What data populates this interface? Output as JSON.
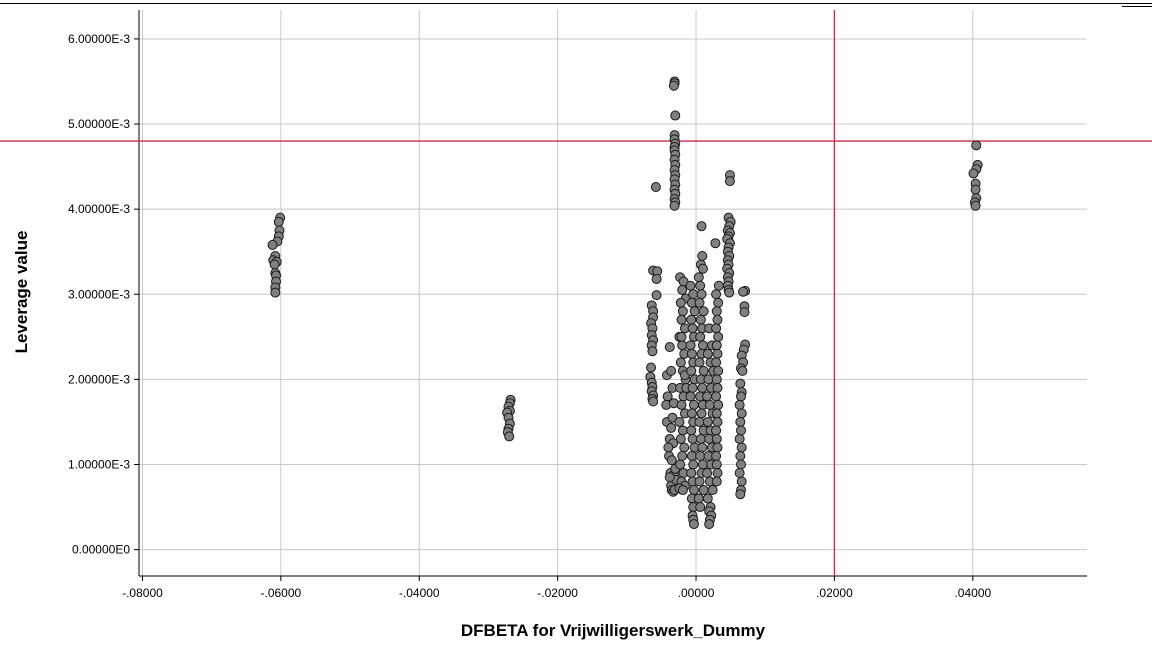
{
  "chart_data": {
    "type": "scatter",
    "title": "",
    "xlabel": "DFBETA for Vrijwilligerswerk_Dummy",
    "ylabel": "Leverage value",
    "xlim": [
      -0.0805,
      0.0565
    ],
    "ylim": [
      -0.00031,
      0.00634
    ],
    "x_ticks": [
      -0.08,
      -0.06,
      -0.04,
      -0.02,
      0.0,
      0.02,
      0.04
    ],
    "x_tick_labels": [
      "-.08000",
      "-.06000",
      "-.04000",
      "-.02000",
      ".00000",
      ".02000",
      ".04000"
    ],
    "y_ticks": [
      0.0,
      0.001,
      0.002,
      0.003,
      0.004,
      0.005,
      0.006
    ],
    "y_tick_labels": [
      "0.00000E0",
      "1.00000E-3",
      "2.00000E-3",
      "3.00000E-3",
      "4.00000E-3",
      "5.00000E-3",
      "6.00000E-3"
    ],
    "grid": true,
    "reference_lines": {
      "x": 0.02,
      "y": 0.0048,
      "color": "#d0284a"
    },
    "marker": {
      "fill": "#808080",
      "stroke": "#1a1a1a"
    },
    "series": [
      {
        "points": [
          [
            -0.0601,
            0.0039
          ],
          [
            -0.0603,
            0.00385
          ],
          [
            -0.0602,
            0.00375
          ],
          [
            -0.0603,
            0.00368
          ],
          [
            -0.0605,
            0.00362
          ],
          [
            -0.0612,
            0.00358
          ],
          [
            -0.0608,
            0.00345
          ],
          [
            -0.0611,
            0.0034
          ],
          [
            -0.0606,
            0.00338
          ],
          [
            -0.0609,
            0.00335
          ],
          [
            -0.0608,
            0.00325
          ],
          [
            -0.0607,
            0.00322
          ],
          [
            -0.0607,
            0.00315
          ],
          [
            -0.0608,
            0.00308
          ],
          [
            -0.0608,
            0.00302
          ],
          [
            -0.0268,
            0.00176
          ],
          [
            -0.0269,
            0.00172
          ],
          [
            -0.0271,
            0.00168
          ],
          [
            -0.0269,
            0.00163
          ],
          [
            -0.0273,
            0.00161
          ],
          [
            -0.0271,
            0.00155
          ],
          [
            -0.0269,
            0.00148
          ],
          [
            -0.0271,
            0.00142
          ],
          [
            -0.0272,
            0.00138
          ],
          [
            -0.027,
            0.00133
          ],
          [
            -0.0062,
            0.00328
          ],
          [
            -0.0056,
            0.00327
          ],
          [
            -0.0057,
            0.00318
          ],
          [
            -0.0057,
            0.00299
          ],
          [
            -0.0064,
            0.00287
          ],
          [
            -0.0062,
            0.0028
          ],
          [
            -0.0062,
            0.00273
          ],
          [
            -0.0065,
            0.00266
          ],
          [
            -0.0063,
            0.0026
          ],
          [
            -0.0064,
            0.00252
          ],
          [
            -0.0062,
            0.00246
          ],
          [
            -0.0064,
            0.0024
          ],
          [
            -0.0063,
            0.00233
          ],
          [
            -0.0065,
            0.00214
          ],
          [
            -0.0066,
            0.00203
          ],
          [
            -0.0064,
            0.00196
          ],
          [
            -0.0063,
            0.00191
          ],
          [
            -0.0064,
            0.00186
          ],
          [
            -0.0062,
            0.00181
          ],
          [
            -0.0063,
            0.00177
          ],
          [
            -0.0062,
            0.00174
          ],
          [
            -0.0058,
            0.00426
          ],
          [
            -0.0031,
            0.0055
          ],
          [
            -0.0031,
            0.00548
          ],
          [
            -0.0032,
            0.00545
          ],
          [
            -0.003,
            0.0051
          ],
          [
            -0.0031,
            0.00487
          ],
          [
            -0.0031,
            0.00482
          ],
          [
            -0.003,
            0.00477
          ],
          [
            -0.0031,
            0.00473
          ],
          [
            -0.0031,
            0.00469
          ],
          [
            -0.003,
            0.00464
          ],
          [
            -0.0031,
            0.00458
          ],
          [
            -0.003,
            0.00452
          ],
          [
            -0.0031,
            0.00446
          ],
          [
            -0.003,
            0.0044
          ],
          [
            -0.0031,
            0.00435
          ],
          [
            -0.003,
            0.00429
          ],
          [
            -0.0031,
            0.00423
          ],
          [
            -0.003,
            0.00418
          ],
          [
            -0.0031,
            0.00412
          ],
          [
            -0.003,
            0.00408
          ],
          [
            -0.0031,
            0.00404
          ],
          [
            -0.0041,
            0.0018
          ],
          [
            -0.0043,
            0.0017
          ],
          [
            -0.0042,
            0.0015
          ],
          [
            -0.0038,
            0.0013
          ],
          [
            -0.0039,
            0.0011
          ],
          [
            -0.0037,
            0.0009
          ],
          [
            -0.0036,
            0.00075
          ],
          [
            -0.0035,
            0.0007
          ],
          [
            -0.0033,
            0.00068
          ],
          [
            -0.0031,
            0.0007
          ],
          [
            -0.0042,
            0.00205
          ],
          [
            -0.0038,
            0.00238
          ],
          [
            -0.0036,
            0.0021
          ],
          [
            -0.0034,
            0.0019
          ],
          [
            -0.0032,
            0.00172
          ],
          [
            -0.0034,
            0.00155
          ],
          [
            -0.0036,
            0.00143
          ],
          [
            -0.0033,
            0.00125
          ],
          [
            -0.0035,
            0.00105
          ],
          [
            -0.0032,
            0.00088
          ],
          [
            -0.003,
            0.00095
          ],
          [
            -0.0029,
            0.00082
          ],
          [
            -0.0038,
            0.00085
          ],
          [
            -0.004,
            0.0012
          ],
          [
            -0.0023,
            0.0032
          ],
          [
            -0.0018,
            0.00315
          ],
          [
            -0.002,
            0.00305
          ],
          [
            -0.0015,
            0.00295
          ],
          [
            -0.0022,
            0.0029
          ],
          [
            -0.0019,
            0.0028
          ],
          [
            -0.0021,
            0.0027
          ],
          [
            -0.0016,
            0.0026
          ],
          [
            -0.0024,
            0.0025
          ],
          [
            -0.002,
            0.0024
          ],
          [
            -0.0017,
            0.0023
          ],
          [
            -0.0022,
            0.0022
          ],
          [
            -0.0019,
            0.0021
          ],
          [
            -0.0015,
            0.002
          ],
          [
            -0.0023,
            0.0019
          ],
          [
            -0.0018,
            0.0018
          ],
          [
            -0.0021,
            0.0017
          ],
          [
            -0.0016,
            0.0016
          ],
          [
            -0.0024,
            0.0015
          ],
          [
            -0.0019,
            0.0014
          ],
          [
            -0.0022,
            0.0013
          ],
          [
            -0.0017,
            0.0012
          ],
          [
            -0.002,
            0.0011
          ],
          [
            -0.0023,
            0.001
          ],
          [
            -0.0018,
            0.0009
          ],
          [
            -0.0021,
            0.0008
          ],
          [
            -0.0016,
            0.00075
          ],
          [
            -0.0024,
            0.00072
          ],
          [
            -0.0019,
            0.0007
          ],
          [
            -0.0016,
            0.00205
          ],
          [
            -0.0014,
            0.0019
          ],
          [
            -0.0021,
            0.0025
          ],
          [
            -0.0008,
            0.0031
          ],
          [
            -0.0004,
            0.003
          ],
          [
            -0.0006,
            0.0029
          ],
          [
            -0.0002,
            0.0028
          ],
          [
            -0.0007,
            0.0027
          ],
          [
            -0.0005,
            0.0026
          ],
          [
            -0.0003,
            0.0025
          ],
          [
            -0.0008,
            0.0024
          ],
          [
            -0.0006,
            0.0023
          ],
          [
            -0.0004,
            0.0022
          ],
          [
            -0.0007,
            0.0021
          ],
          [
            -0.0002,
            0.002
          ],
          [
            -0.0005,
            0.0019
          ],
          [
            -0.0008,
            0.0018
          ],
          [
            -0.0003,
            0.0017
          ],
          [
            -0.0006,
            0.0016
          ],
          [
            -0.0004,
            0.0015
          ],
          [
            -0.0007,
            0.0014
          ],
          [
            -0.0005,
            0.0013
          ],
          [
            -0.0002,
            0.0012
          ],
          [
            -0.0006,
            0.0011
          ],
          [
            -0.0004,
            0.001
          ],
          [
            -0.0007,
            0.0009
          ],
          [
            -0.0005,
            0.0008
          ],
          [
            -0.0003,
            0.0007
          ],
          [
            -0.0006,
            0.0006
          ],
          [
            -0.0004,
            0.0005
          ],
          [
            -0.0005,
            0.0004
          ],
          [
            -0.0004,
            0.00035
          ],
          [
            -0.0003,
            0.0003
          ],
          [
            0.0004,
            0.0032
          ],
          [
            0.0007,
            0.00335
          ],
          [
            0.0009,
            0.00345
          ],
          [
            0.001,
            0.0033
          ],
          [
            0.0006,
            0.0031
          ],
          [
            0.0008,
            0.003
          ],
          [
            0.0005,
            0.0029
          ],
          [
            0.0011,
            0.0028
          ],
          [
            0.0007,
            0.0027
          ],
          [
            0.0009,
            0.0026
          ],
          [
            0.0006,
            0.0025
          ],
          [
            0.001,
            0.0024
          ],
          [
            0.0008,
            0.0023
          ],
          [
            0.0005,
            0.0022
          ],
          [
            0.0011,
            0.0021
          ],
          [
            0.0007,
            0.002
          ],
          [
            0.0009,
            0.0019
          ],
          [
            0.0006,
            0.0018
          ],
          [
            0.001,
            0.0017
          ],
          [
            0.0008,
            0.0016
          ],
          [
            0.0005,
            0.0015
          ],
          [
            0.0011,
            0.0014
          ],
          [
            0.0007,
            0.0013
          ],
          [
            0.0009,
            0.0012
          ],
          [
            0.0006,
            0.0011
          ],
          [
            0.001,
            0.001
          ],
          [
            0.0008,
            0.0009
          ],
          [
            0.0005,
            0.0008
          ],
          [
            0.0011,
            0.0007
          ],
          [
            0.0008,
            0.0038
          ],
          [
            0.0004,
            0.0006
          ],
          [
            0.0006,
            0.0005
          ],
          [
            0.0019,
            0.0026
          ],
          [
            0.0023,
            0.0024
          ],
          [
            0.0017,
            0.0023
          ],
          [
            0.0021,
            0.0022
          ],
          [
            0.0025,
            0.0021
          ],
          [
            0.0018,
            0.002
          ],
          [
            0.0022,
            0.0019
          ],
          [
            0.0016,
            0.0018
          ],
          [
            0.002,
            0.0017
          ],
          [
            0.0024,
            0.0016
          ],
          [
            0.0017,
            0.0015
          ],
          [
            0.0021,
            0.0014
          ],
          [
            0.0019,
            0.0013
          ],
          [
            0.0023,
            0.0012
          ],
          [
            0.0018,
            0.0011
          ],
          [
            0.0022,
            0.001
          ],
          [
            0.0016,
            0.0009
          ],
          [
            0.002,
            0.0008
          ],
          [
            0.0024,
            0.0007
          ],
          [
            0.0017,
            0.0006
          ],
          [
            0.0021,
            0.0005
          ],
          [
            0.0019,
            0.00045
          ],
          [
            0.0022,
            0.0004
          ],
          [
            0.002,
            0.00035
          ],
          [
            0.0019,
            0.0003
          ],
          [
            0.0028,
            0.0036
          ],
          [
            0.0033,
            0.0031
          ],
          [
            0.0029,
            0.003
          ],
          [
            0.0032,
            0.0029
          ],
          [
            0.003,
            0.0028
          ],
          [
            0.0031,
            0.0027
          ],
          [
            0.0029,
            0.0026
          ],
          [
            0.0032,
            0.0025
          ],
          [
            0.003,
            0.0024
          ],
          [
            0.0031,
            0.0023
          ],
          [
            0.0029,
            0.0022
          ],
          [
            0.0032,
            0.0021
          ],
          [
            0.003,
            0.002
          ],
          [
            0.0031,
            0.0019
          ],
          [
            0.0029,
            0.0018
          ],
          [
            0.0032,
            0.0017
          ],
          [
            0.003,
            0.0016
          ],
          [
            0.0031,
            0.0015
          ],
          [
            0.0029,
            0.0014
          ],
          [
            0.003,
            0.0013
          ],
          [
            0.0031,
            0.0012
          ],
          [
            0.0029,
            0.0011
          ],
          [
            0.003,
            0.001
          ],
          [
            0.0031,
            0.0009
          ],
          [
            0.003,
            0.0008
          ],
          [
            0.0049,
            0.0044
          ],
          [
            0.0049,
            0.00433
          ],
          [
            0.0047,
            0.0039
          ],
          [
            0.005,
            0.00385
          ],
          [
            0.0048,
            0.0038
          ],
          [
            0.0046,
            0.00375
          ],
          [
            0.0049,
            0.00372
          ],
          [
            0.0047,
            0.00368
          ],
          [
            0.0045,
            0.00365
          ],
          [
            0.0049,
            0.0036
          ],
          [
            0.0047,
            0.00355
          ],
          [
            0.0046,
            0.0035
          ],
          [
            0.0048,
            0.00345
          ],
          [
            0.0046,
            0.0034
          ],
          [
            0.0047,
            0.00335
          ],
          [
            0.0045,
            0.0033
          ],
          [
            0.0048,
            0.00325
          ],
          [
            0.0046,
            0.0032
          ],
          [
            0.0047,
            0.00315
          ],
          [
            0.0046,
            0.0031
          ],
          [
            0.0047,
            0.00305
          ],
          [
            0.0048,
            0.00302
          ],
          [
            0.0071,
            0.00304
          ],
          [
            0.0068,
            0.00303
          ],
          [
            0.007,
            0.00286
          ],
          [
            0.007,
            0.00279
          ],
          [
            0.0071,
            0.00241
          ],
          [
            0.0069,
            0.00235
          ],
          [
            0.0066,
            0.00228
          ],
          [
            0.0068,
            0.0022
          ],
          [
            0.0065,
            0.00213
          ],
          [
            0.0067,
            0.0021
          ],
          [
            0.0064,
            0.00195
          ],
          [
            0.0066,
            0.00185
          ],
          [
            0.0065,
            0.0018
          ],
          [
            0.0063,
            0.0017
          ],
          [
            0.0066,
            0.0016
          ],
          [
            0.0064,
            0.0015
          ],
          [
            0.0065,
            0.0014
          ],
          [
            0.0063,
            0.0013
          ],
          [
            0.0066,
            0.0012
          ],
          [
            0.0064,
            0.0011
          ],
          [
            0.0065,
            0.001
          ],
          [
            0.0063,
            0.0009
          ],
          [
            0.0066,
            0.0008
          ],
          [
            0.0065,
            0.0007
          ],
          [
            0.0064,
            0.00065
          ],
          [
            0.0405,
            0.00475
          ],
          [
            0.0407,
            0.00452
          ],
          [
            0.0405,
            0.00447
          ],
          [
            0.0401,
            0.00442
          ],
          [
            0.0404,
            0.0043
          ],
          [
            0.0404,
            0.00423
          ],
          [
            0.0405,
            0.00413
          ],
          [
            0.0403,
            0.00408
          ],
          [
            0.0404,
            0.00404
          ]
        ]
      }
    ]
  }
}
